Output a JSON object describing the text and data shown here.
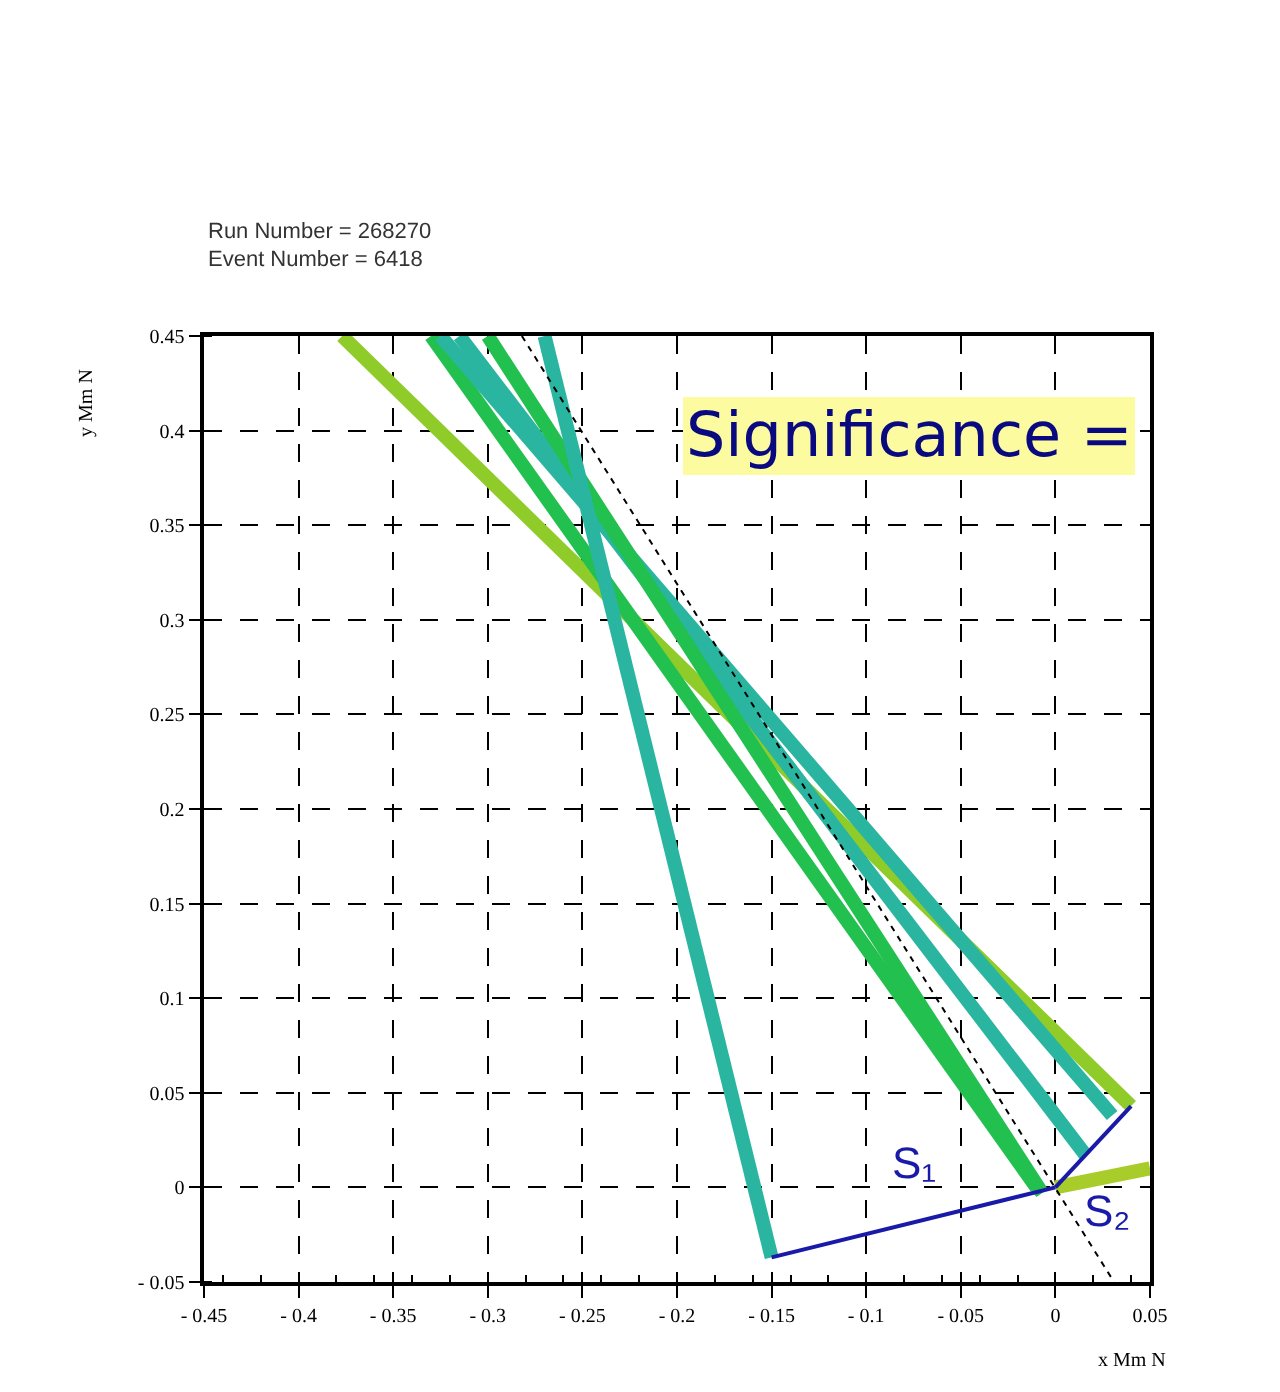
{
  "chart_data": {
    "type": "line",
    "xlabel": "x Mm N",
    "ylabel": "y Mm N",
    "xlim": [
      -0.45,
      0.05
    ],
    "ylim": [
      -0.05,
      0.45
    ],
    "xticks": [
      {
        "value": -0.45,
        "label": "- 0.45"
      },
      {
        "value": -0.4,
        "label": "- 0.4"
      },
      {
        "value": -0.35,
        "label": "- 0.35"
      },
      {
        "value": -0.3,
        "label": "- 0.3"
      },
      {
        "value": -0.25,
        "label": "- 0.25"
      },
      {
        "value": -0.2,
        "label": "- 0.2"
      },
      {
        "value": -0.15,
        "label": "- 0.15"
      },
      {
        "value": -0.1,
        "label": "- 0.1"
      },
      {
        "value": -0.05,
        "label": "- 0.05"
      },
      0,
      0.05
    ],
    "yticks": [
      {
        "value": -0.05,
        "label": "- 0.05"
      },
      0,
      0.05,
      0.1,
      0.15,
      0.2,
      0.25,
      0.3,
      0.35,
      0.4,
      0.45
    ],
    "grid": true,
    "series": [
      {
        "color": "#8fcc2a",
        "x": [
          -0.377,
          0.04
        ],
        "values": [
          0.45,
          0.043
        ]
      },
      {
        "color": "#22c04f",
        "x": [
          -0.33,
          -0.01
        ],
        "values": [
          0.45,
          0.0
        ]
      },
      {
        "color": "#2ab5a0",
        "x": [
          -0.325,
          0.03
        ],
        "values": [
          0.45,
          0.038
        ]
      },
      {
        "color": "#2ab5a0",
        "x": [
          -0.315,
          0.016
        ],
        "values": [
          0.45,
          0.017
        ]
      },
      {
        "color": "#22c04f",
        "x": [
          -0.3,
          -0.007
        ],
        "values": [
          0.45,
          -0.003
        ]
      },
      {
        "color": "#2ab5a0",
        "x": [
          -0.27,
          -0.15
        ],
        "values": [
          0.45,
          -0.037
        ]
      },
      {
        "color": "#a8cc2a",
        "x": [
          0.0,
          0.05
        ],
        "values": [
          0.0,
          0.01
        ]
      },
      {
        "color": "#000000",
        "line_style": "dotted",
        "x": [
          -0.282,
          0.031
        ],
        "values": [
          0.45,
          -0.05
        ]
      },
      {
        "color": "#1a1aa8",
        "x": [
          -0.15,
          0.0
        ],
        "values": [
          -0.037,
          0.0
        ]
      },
      {
        "color": "#1a1aa8",
        "x": [
          0.0,
          0.04
        ],
        "values": [
          0.0,
          0.043
        ]
      }
    ],
    "annotations": [
      "Run Number = 268270",
      "Event Number = 6418",
      "Significance =",
      "S₁",
      "S₂"
    ]
  }
}
